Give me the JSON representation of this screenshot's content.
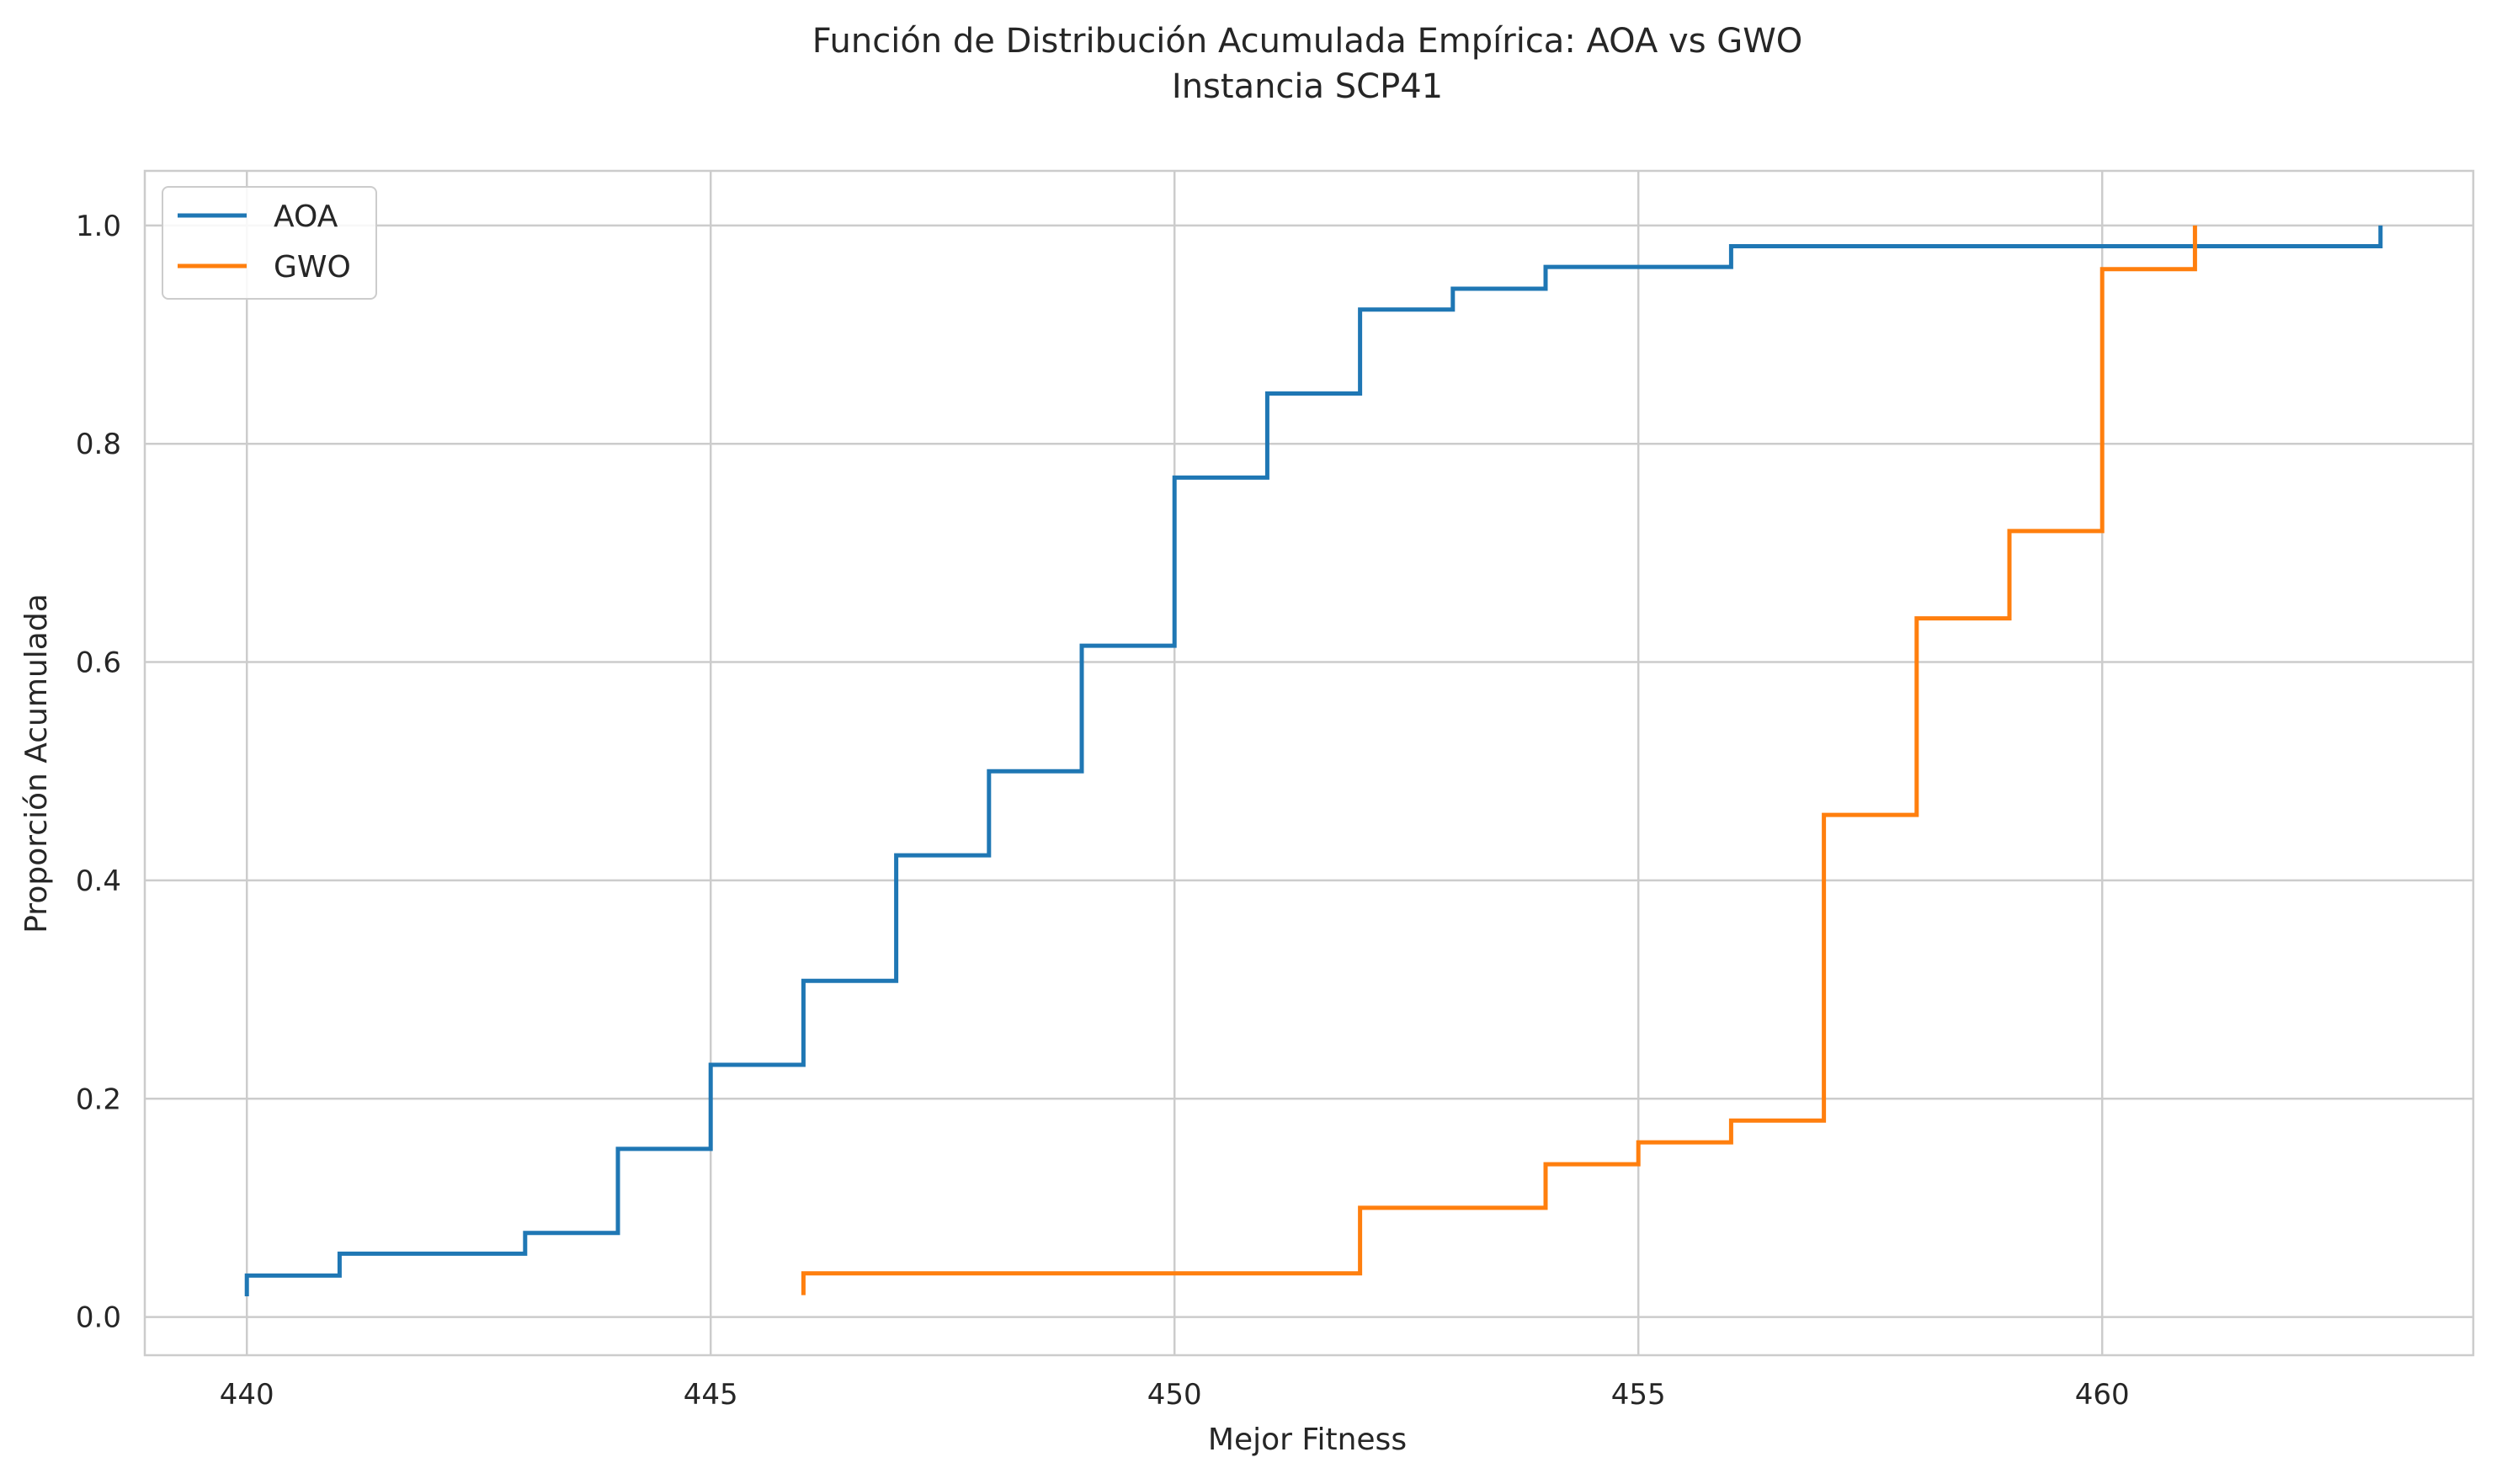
{
  "chart_data": {
    "type": "line",
    "step": true,
    "title": "Función de Distribución Acumulada Empírica: AOA vs GWO",
    "subtitle": "Instancia SCP41",
    "xlabel": "Mejor Fitness",
    "ylabel": "Proporción Acumulada",
    "xlim": [
      438.9,
      464.0
    ],
    "ylim": [
      -0.035,
      1.05
    ],
    "xticks": [
      440,
      445,
      450,
      455,
      460
    ],
    "yticks": [
      0.0,
      0.2,
      0.4,
      0.6,
      0.8,
      1.0
    ],
    "xtick_labels": [
      "440",
      "445",
      "450",
      "455",
      "460"
    ],
    "ytick_labels": [
      "0.0",
      "0.2",
      "0.4",
      "0.6",
      "0.8",
      "1.0"
    ],
    "grid": true,
    "legend_position": "top-left",
    "series": [
      {
        "name": "AOA",
        "color": "#1f77b4",
        "x": [
          440,
          441,
          443,
          444,
          445,
          446,
          447,
          448,
          449,
          450,
          451,
          452,
          453,
          454,
          456,
          463
        ],
        "y": [
          0.038,
          0.058,
          0.077,
          0.154,
          0.231,
          0.308,
          0.423,
          0.5,
          0.615,
          0.769,
          0.846,
          0.923,
          0.942,
          0.962,
          0.981,
          1.0
        ],
        "start_y": 0.019
      },
      {
        "name": "GWO",
        "color": "#ff7f0e",
        "x": [
          446,
          452,
          454,
          455,
          456,
          457,
          458,
          459,
          460,
          461
        ],
        "y": [
          0.04,
          0.1,
          0.14,
          0.16,
          0.18,
          0.46,
          0.64,
          0.72,
          0.96,
          1.0
        ],
        "start_y": 0.02
      }
    ]
  }
}
